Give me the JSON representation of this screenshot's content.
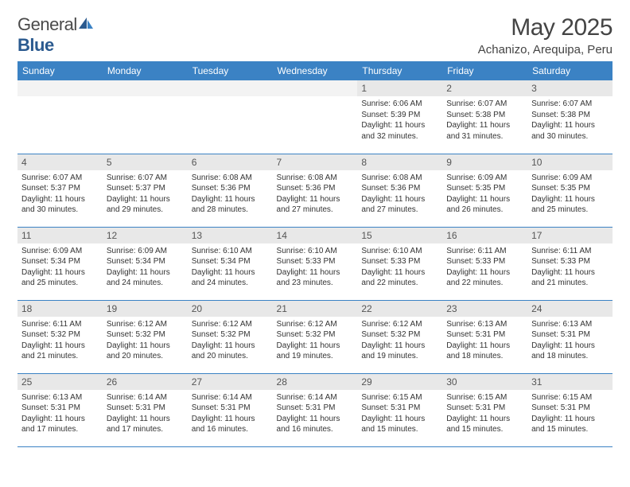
{
  "brand": {
    "part1": "General",
    "part2": "Blue"
  },
  "title": "May 2025",
  "location": "Achanizo, Arequipa, Peru",
  "colors": {
    "header_bg": "#3b82c4",
    "header_text": "#ffffff",
    "daynum_bg": "#e8e8e8",
    "border": "#3b82c4",
    "brand_blue": "#2b5a8f",
    "text": "#333333"
  },
  "weekdays": [
    "Sunday",
    "Monday",
    "Tuesday",
    "Wednesday",
    "Thursday",
    "Friday",
    "Saturday"
  ],
  "weeks": [
    [
      null,
      null,
      null,
      null,
      {
        "n": "1",
        "sr": "6:06 AM",
        "ss": "5:39 PM",
        "dl": "11 hours and 32 minutes."
      },
      {
        "n": "2",
        "sr": "6:07 AM",
        "ss": "5:38 PM",
        "dl": "11 hours and 31 minutes."
      },
      {
        "n": "3",
        "sr": "6:07 AM",
        "ss": "5:38 PM",
        "dl": "11 hours and 30 minutes."
      }
    ],
    [
      {
        "n": "4",
        "sr": "6:07 AM",
        "ss": "5:37 PM",
        "dl": "11 hours and 30 minutes."
      },
      {
        "n": "5",
        "sr": "6:07 AM",
        "ss": "5:37 PM",
        "dl": "11 hours and 29 minutes."
      },
      {
        "n": "6",
        "sr": "6:08 AM",
        "ss": "5:36 PM",
        "dl": "11 hours and 28 minutes."
      },
      {
        "n": "7",
        "sr": "6:08 AM",
        "ss": "5:36 PM",
        "dl": "11 hours and 27 minutes."
      },
      {
        "n": "8",
        "sr": "6:08 AM",
        "ss": "5:36 PM",
        "dl": "11 hours and 27 minutes."
      },
      {
        "n": "9",
        "sr": "6:09 AM",
        "ss": "5:35 PM",
        "dl": "11 hours and 26 minutes."
      },
      {
        "n": "10",
        "sr": "6:09 AM",
        "ss": "5:35 PM",
        "dl": "11 hours and 25 minutes."
      }
    ],
    [
      {
        "n": "11",
        "sr": "6:09 AM",
        "ss": "5:34 PM",
        "dl": "11 hours and 25 minutes."
      },
      {
        "n": "12",
        "sr": "6:09 AM",
        "ss": "5:34 PM",
        "dl": "11 hours and 24 minutes."
      },
      {
        "n": "13",
        "sr": "6:10 AM",
        "ss": "5:34 PM",
        "dl": "11 hours and 24 minutes."
      },
      {
        "n": "14",
        "sr": "6:10 AM",
        "ss": "5:33 PM",
        "dl": "11 hours and 23 minutes."
      },
      {
        "n": "15",
        "sr": "6:10 AM",
        "ss": "5:33 PM",
        "dl": "11 hours and 22 minutes."
      },
      {
        "n": "16",
        "sr": "6:11 AM",
        "ss": "5:33 PM",
        "dl": "11 hours and 22 minutes."
      },
      {
        "n": "17",
        "sr": "6:11 AM",
        "ss": "5:33 PM",
        "dl": "11 hours and 21 minutes."
      }
    ],
    [
      {
        "n": "18",
        "sr": "6:11 AM",
        "ss": "5:32 PM",
        "dl": "11 hours and 21 minutes."
      },
      {
        "n": "19",
        "sr": "6:12 AM",
        "ss": "5:32 PM",
        "dl": "11 hours and 20 minutes."
      },
      {
        "n": "20",
        "sr": "6:12 AM",
        "ss": "5:32 PM",
        "dl": "11 hours and 20 minutes."
      },
      {
        "n": "21",
        "sr": "6:12 AM",
        "ss": "5:32 PM",
        "dl": "11 hours and 19 minutes."
      },
      {
        "n": "22",
        "sr": "6:12 AM",
        "ss": "5:32 PM",
        "dl": "11 hours and 19 minutes."
      },
      {
        "n": "23",
        "sr": "6:13 AM",
        "ss": "5:31 PM",
        "dl": "11 hours and 18 minutes."
      },
      {
        "n": "24",
        "sr": "6:13 AM",
        "ss": "5:31 PM",
        "dl": "11 hours and 18 minutes."
      }
    ],
    [
      {
        "n": "25",
        "sr": "6:13 AM",
        "ss": "5:31 PM",
        "dl": "11 hours and 17 minutes."
      },
      {
        "n": "26",
        "sr": "6:14 AM",
        "ss": "5:31 PM",
        "dl": "11 hours and 17 minutes."
      },
      {
        "n": "27",
        "sr": "6:14 AM",
        "ss": "5:31 PM",
        "dl": "11 hours and 16 minutes."
      },
      {
        "n": "28",
        "sr": "6:14 AM",
        "ss": "5:31 PM",
        "dl": "11 hours and 16 minutes."
      },
      {
        "n": "29",
        "sr": "6:15 AM",
        "ss": "5:31 PM",
        "dl": "11 hours and 15 minutes."
      },
      {
        "n": "30",
        "sr": "6:15 AM",
        "ss": "5:31 PM",
        "dl": "11 hours and 15 minutes."
      },
      {
        "n": "31",
        "sr": "6:15 AM",
        "ss": "5:31 PM",
        "dl": "11 hours and 15 minutes."
      }
    ]
  ],
  "labels": {
    "sunrise": "Sunrise:",
    "sunset": "Sunset:",
    "daylight": "Daylight:"
  }
}
